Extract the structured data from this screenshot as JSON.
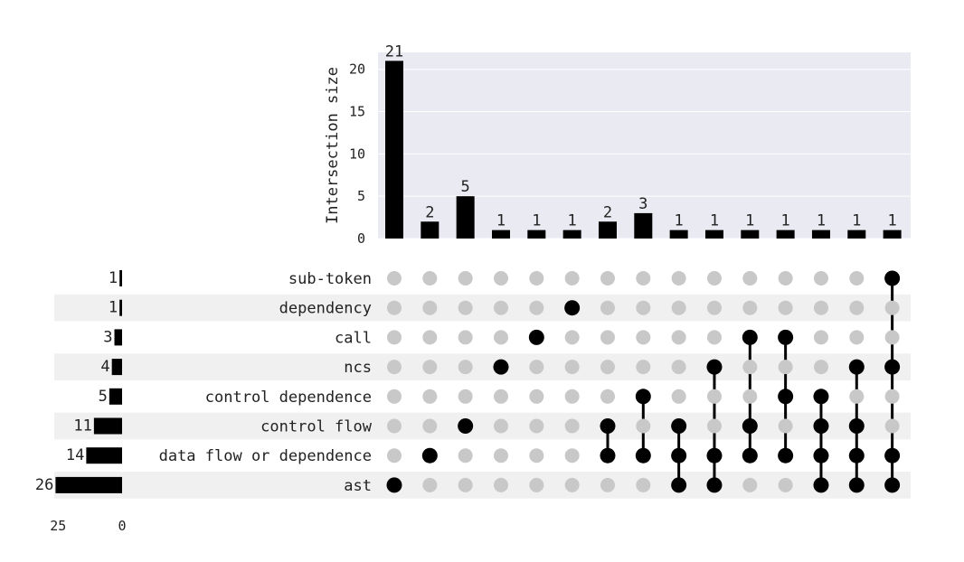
{
  "chart_data": {
    "type": "upset",
    "ylabel": "Intersection size",
    "ylim": [
      0,
      22
    ],
    "yticks": [
      0,
      5,
      10,
      15,
      20
    ],
    "sets": [
      "sub-token",
      "dependency",
      "call",
      "ncs",
      "control dependence",
      "control flow",
      "data flow or dependence",
      "ast"
    ],
    "set_sizes": [
      1,
      1,
      3,
      4,
      5,
      11,
      14,
      26
    ],
    "set_size_ticks": [
      25,
      0
    ],
    "intersections": [
      {
        "members": [
          "ast"
        ],
        "size": 21
      },
      {
        "members": [
          "data flow or dependence"
        ],
        "size": 2
      },
      {
        "members": [
          "control flow"
        ],
        "size": 5
      },
      {
        "members": [
          "ncs"
        ],
        "size": 1
      },
      {
        "members": [
          "call"
        ],
        "size": 1
      },
      {
        "members": [
          "dependency"
        ],
        "size": 1
      },
      {
        "members": [
          "control flow",
          "data flow or dependence"
        ],
        "size": 2
      },
      {
        "members": [
          "control dependence",
          "data flow or dependence"
        ],
        "size": 3
      },
      {
        "members": [
          "control flow",
          "data flow or dependence",
          "ast"
        ],
        "size": 1
      },
      {
        "members": [
          "ncs",
          "data flow or dependence",
          "ast"
        ],
        "size": 1
      },
      {
        "members": [
          "call",
          "control flow",
          "data flow or dependence"
        ],
        "size": 1
      },
      {
        "members": [
          "call",
          "control dependence",
          "data flow or dependence"
        ],
        "size": 1
      },
      {
        "members": [
          "control dependence",
          "control flow",
          "data flow or dependence",
          "ast"
        ],
        "size": 1
      },
      {
        "members": [
          "ncs",
          "control flow",
          "data flow or dependence",
          "ast"
        ],
        "size": 1
      },
      {
        "members": [
          "sub-token",
          "ncs",
          "data flow or dependence",
          "ast"
        ],
        "size": 1
      }
    ],
    "grid": true
  },
  "colors": {
    "bar": "#000000",
    "plot_bg": "#eaeaf2",
    "grid": "#ffffff",
    "row_shade": "#f0f0f0",
    "dot_on": "#000000",
    "dot_off": "#c8c8c8"
  }
}
